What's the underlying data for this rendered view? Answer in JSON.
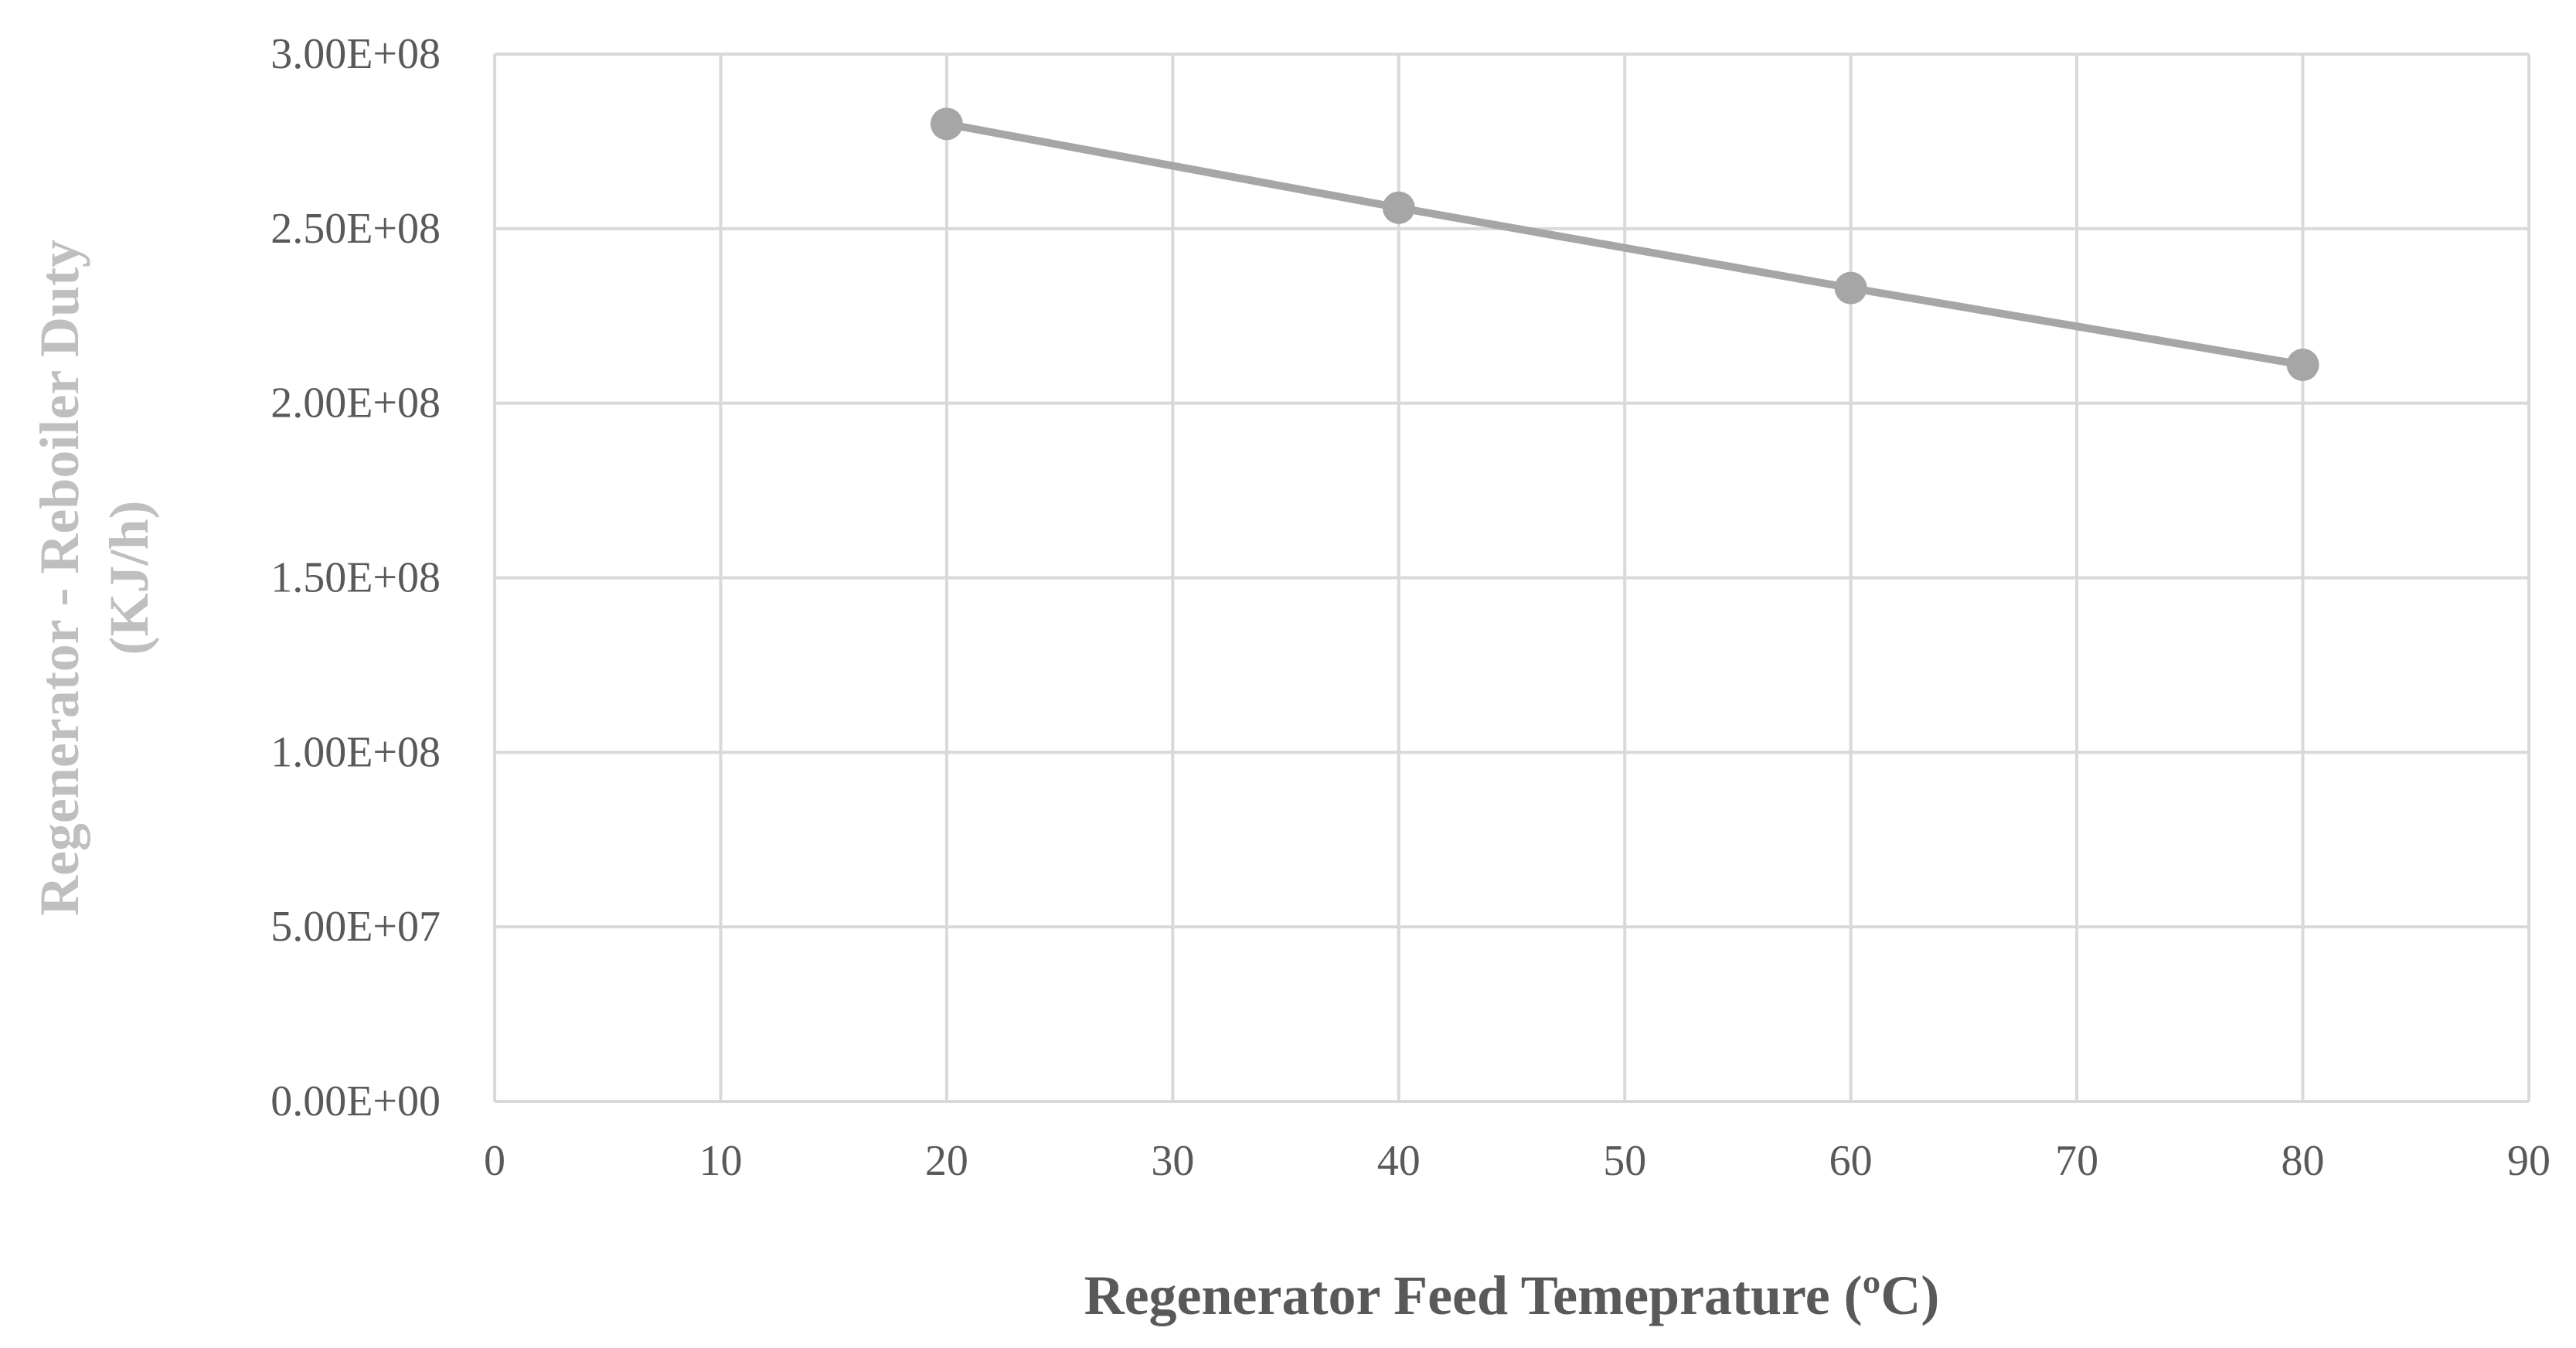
{
  "chart_data": {
    "type": "line",
    "title": "",
    "xlabel": "Regenerator Feed Temeprature (ºC)",
    "ylabel_lines": [
      "Regenerator - Reboiler Duty",
      "(KJ/h)"
    ],
    "x": [
      20,
      40,
      60,
      80
    ],
    "series": [
      {
        "name": "Regenerator - Reboiler Duty",
        "values": [
          280000000,
          256000000,
          233000000,
          211000000
        ]
      }
    ],
    "xlim": [
      0,
      90
    ],
    "ylim": [
      0,
      300000000
    ],
    "x_ticks": [
      0,
      10,
      20,
      30,
      40,
      50,
      60,
      70,
      80,
      90
    ],
    "x_tick_labels": [
      "0",
      "10",
      "20",
      "30",
      "40",
      "50",
      "60",
      "70",
      "80",
      "90"
    ],
    "y_ticks": [
      0,
      50000000,
      100000000,
      150000000,
      200000000,
      250000000,
      300000000
    ],
    "y_tick_labels": [
      "0.00E+00",
      "5.00E+07",
      "1.00E+08",
      "1.50E+08",
      "2.00E+08",
      "2.50E+08",
      "3.00E+08"
    ],
    "grid": true,
    "legend": "none"
  },
  "colors": {
    "line": "#a6a6a6",
    "marker": "#a6a6a6",
    "grid": "#d9d9d9",
    "tick_text": "#595959",
    "x_title": "#595959",
    "y_title": "#bfbfbf"
  }
}
